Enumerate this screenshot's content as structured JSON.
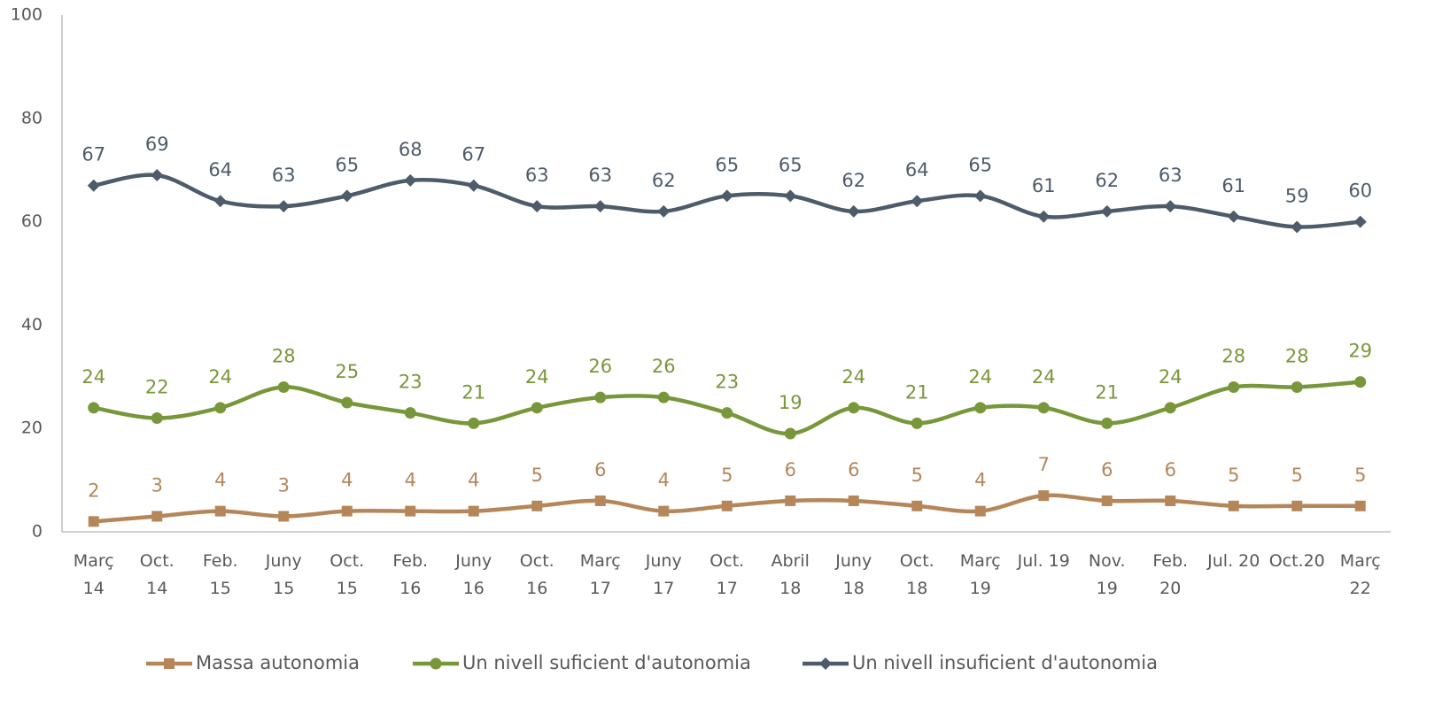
{
  "chart_data": {
    "type": "line",
    "categories": [
      "Març\n14",
      "Oct.\n14",
      "Feb.\n15",
      "Juny\n15",
      "Oct.\n15",
      "Feb.\n16",
      "Juny\n16",
      "Oct.\n16",
      "Març\n17",
      "Juny\n17",
      "Oct.\n17",
      "Abril\n18",
      "Juny\n18",
      "Oct.\n18",
      "Març\n19",
      "Jul. 19",
      "Nov.\n19",
      "Feb.\n20",
      "Jul. 20",
      "Oct.20",
      "Març\n22"
    ],
    "series": [
      {
        "name": "Massa autonomia",
        "color": "#b5865a",
        "marker": "square",
        "values": [
          2,
          3,
          4,
          3,
          4,
          4,
          4,
          5,
          6,
          4,
          5,
          6,
          6,
          5,
          4,
          7,
          6,
          6,
          5,
          5,
          5
        ]
      },
      {
        "name": "Un nivell suficient d'autonomia",
        "color": "#78973a",
        "marker": "circle",
        "values": [
          24,
          22,
          24,
          28,
          25,
          23,
          21,
          24,
          26,
          26,
          23,
          19,
          24,
          21,
          24,
          24,
          21,
          24,
          28,
          28,
          29
        ]
      },
      {
        "name": "Un nivell insuficient d'autonomia",
        "color": "#4d5b6a",
        "marker": "diamond",
        "values": [
          67,
          69,
          64,
          63,
          65,
          68,
          67,
          63,
          63,
          62,
          65,
          65,
          62,
          64,
          65,
          61,
          62,
          63,
          61,
          59,
          60
        ]
      }
    ],
    "ylim": [
      0,
      100
    ],
    "yticks": [
      0,
      20,
      40,
      60,
      80,
      100
    ],
    "grid": false,
    "legend": "bottom"
  }
}
